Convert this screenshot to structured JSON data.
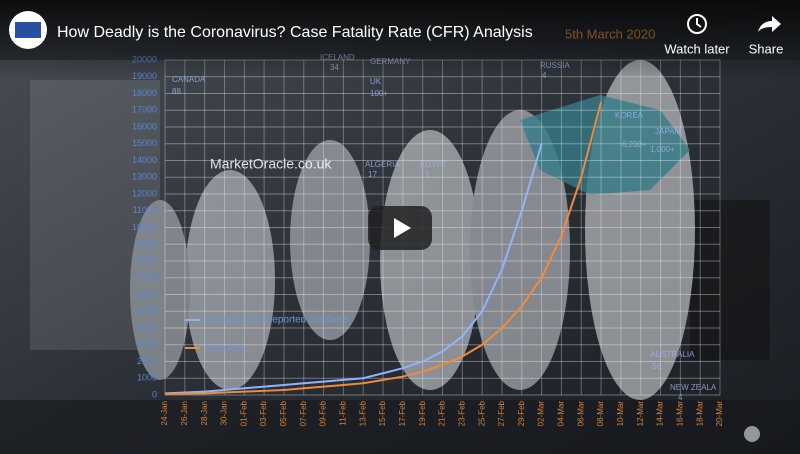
{
  "header": {
    "title": "How Deadly is the Coronavirus? Case Fatality Rate (CFR) Analysis",
    "actions": [
      "Watch later",
      "Share"
    ]
  },
  "video": {
    "watermark": "MarketOracle.co.uk",
    "date_label": "5th March 2020",
    "map_labels": [
      "CANADA",
      "88",
      "ICELAND",
      "34",
      "GERMANY",
      "RUSSIA",
      "4",
      "UK",
      "100+",
      "KOREA",
      "6,200+",
      "JAPAN",
      "1,000+",
      "ALGERIA",
      "17",
      "EGYPT",
      "1",
      "AUSTRALIA",
      "56",
      "NEW ZEALA",
      "4"
    ],
    "chart": {
      "type": "line",
      "x": [
        "24-Jan",
        "26-Jan",
        "28-Jan",
        "30-Jan",
        "01-Feb",
        "03-Feb",
        "05-Feb",
        "07-Feb",
        "09-Feb",
        "11-Feb",
        "13-Feb",
        "15-Feb",
        "17-Feb",
        "19-Feb",
        "21-Feb",
        "23-Feb",
        "25-Feb",
        "27-Feb",
        "29-Feb",
        "02-Mar",
        "04-Mar",
        "06-Mar",
        "08-Mar",
        "10-Mar",
        "12-Mar",
        "14-Mar",
        "16-Mar",
        "18-Mar",
        "20-Mar"
      ],
      "ylim": [
        0,
        20000
      ],
      "yticks": [
        0,
        1000,
        2000,
        3000,
        4000,
        5000,
        6000,
        7000,
        8000,
        9000,
        10000,
        11000,
        12000,
        13000,
        14000,
        15000,
        16000,
        17000,
        18000,
        19000,
        20000
      ],
      "grid": true,
      "series": [
        {
          "name": "Outside china reported numbers",
          "color": "#8fb4ff",
          "values": [
            100,
            150,
            200,
            300,
            400,
            500,
            600,
            700,
            800,
            900,
            1000,
            1300,
            1600,
            2000,
            2600,
            3500,
            5000,
            7500,
            11000,
            15000,
            null,
            null,
            null,
            null,
            null,
            null,
            null,
            null,
            null
          ]
        },
        {
          "name": "Forecast",
          "color": "#f08a3c",
          "values": [
            50,
            80,
            100,
            150,
            200,
            250,
            300,
            400,
            500,
            600,
            700,
            900,
            1100,
            1400,
            1800,
            2300,
            3000,
            4000,
            5300,
            7000,
            9500,
            13000,
            17500,
            null,
            null,
            null,
            null,
            null,
            null
          ]
        }
      ]
    }
  }
}
